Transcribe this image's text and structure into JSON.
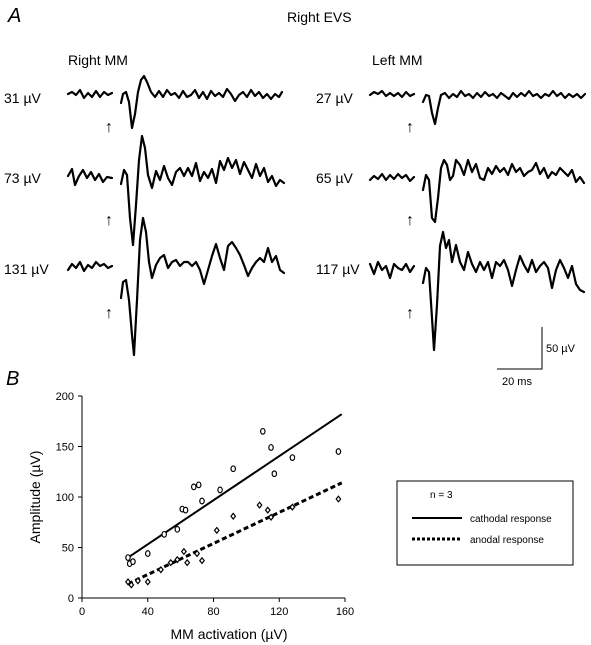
{
  "panel_a": {
    "panel_letter": "A",
    "title": "Right EVS",
    "columns": [
      {
        "heading": "Right MM",
        "rows": [
          "31 µV",
          "73 µV",
          "131 µV"
        ]
      },
      {
        "heading": "Left MM",
        "rows": [
          "27 µV",
          "65 µV",
          "117 µV"
        ]
      }
    ],
    "stimulus_marker": "↑",
    "scale_bar": {
      "vertical_label": "50 µV",
      "horizontal_label": "20 ms"
    }
  },
  "panel_b": {
    "panel_letter": "B",
    "legend": {
      "n_label": "n = 3",
      "cathodal": "cathodal response",
      "anodal": "anodal response"
    }
  },
  "chart_data": {
    "type": "scatter",
    "xlabel": "MM activation (µV)",
    "ylabel": "Amplitude (µV)",
    "xlim": [
      0,
      160
    ],
    "ylim": [
      0,
      200
    ],
    "xticks": [
      "0",
      "40",
      "80",
      "120",
      "160"
    ],
    "yticks": [
      "0",
      "50",
      "100",
      "150",
      "200"
    ],
    "legend_position": "right",
    "series": [
      {
        "name": "cathodal response",
        "marker": "circle",
        "line": "solid",
        "fit": [
          [
            28,
            40
          ],
          [
            158,
            182
          ]
        ],
        "x": [
          28,
          29,
          31,
          40,
          50,
          58,
          61,
          63,
          68,
          71,
          73,
          84,
          92,
          110,
          115,
          117,
          128,
          156
        ],
        "y": [
          40,
          34,
          36,
          44,
          63,
          68,
          88,
          87,
          110,
          112,
          96,
          107,
          128,
          165,
          149,
          123,
          139,
          145
        ]
      },
      {
        "name": "anodal response",
        "marker": "diamond",
        "line": "dashed",
        "fit": [
          [
            28,
            14
          ],
          [
            158,
            114
          ]
        ],
        "x": [
          28,
          30,
          34,
          40,
          48,
          54,
          58,
          62,
          64,
          70,
          73,
          82,
          92,
          108,
          113,
          115,
          128,
          156
        ],
        "y": [
          16,
          13,
          17,
          16,
          28,
          35,
          38,
          46,
          35,
          44,
          37,
          67,
          81,
          92,
          87,
          80,
          90,
          98
        ]
      }
    ]
  }
}
